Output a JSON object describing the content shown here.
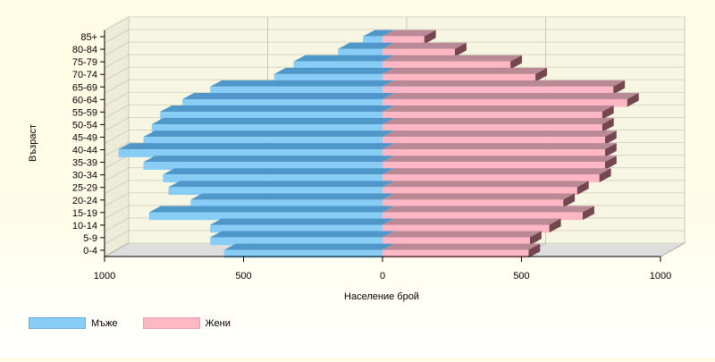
{
  "chart_data": {
    "type": "bar",
    "orientation": "horizontal",
    "style": "population-pyramid-3d",
    "xlabel": "Население брой",
    "ylabel": "Възраст",
    "xlim": [
      -1000,
      1000
    ],
    "xticks": [
      -1000,
      -500,
      0,
      500,
      1000
    ],
    "xtick_labels": [
      "1000",
      "500",
      "0",
      "500",
      "1000"
    ],
    "grid": true,
    "legend_position": "bottom-left",
    "categories": [
      "0-4",
      "5-9",
      "10-14",
      "15-19",
      "20-24",
      "25-29",
      "30-34",
      "35-39",
      "40-44",
      "45-49",
      "50-54",
      "55-59",
      "60-64",
      "65-69",
      "70-74",
      "75-79",
      "80-84",
      "85+"
    ],
    "series": [
      {
        "name": "Мъже",
        "color": "#87cdf5",
        "side_color": "#4f97c9",
        "values": [
          570,
          620,
          620,
          840,
          690,
          770,
          790,
          860,
          950,
          860,
          830,
          800,
          720,
          620,
          390,
          320,
          160,
          70
        ]
      },
      {
        "name": "Жени",
        "color": "#ffb6c5",
        "side_color": "#744650",
        "values": [
          525,
          530,
          600,
          720,
          650,
          700,
          780,
          800,
          800,
          800,
          790,
          790,
          880,
          830,
          550,
          460,
          260,
          150
        ]
      }
    ]
  }
}
